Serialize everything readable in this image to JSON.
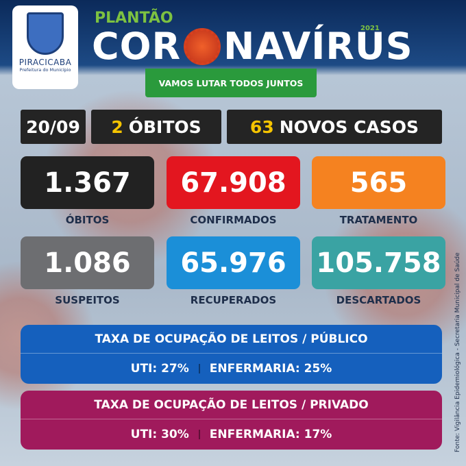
{
  "header": {
    "city": "PIRACICABA",
    "city_subtitle": "Prefeitura do Município",
    "kicker": "PLANTÃO",
    "title_left": "COR",
    "title_right": "NAVÍRUS",
    "year": "2021",
    "slogan": "VAMOS LUTAR TODOS JUNTOS"
  },
  "summary": {
    "date": "20/09",
    "deaths_count": "2",
    "deaths_label": "ÓBITOS",
    "new_cases_count": "63",
    "new_cases_label": "NOVOS CASOS"
  },
  "stats": [
    {
      "value": "1.367",
      "label": "ÓBITOS",
      "color": "#222222"
    },
    {
      "value": "67.908",
      "label": "CONFIRMADOS",
      "color": "#e3161f"
    },
    {
      "value": "565",
      "label": "TRATAMENTO",
      "color": "#f58220"
    },
    {
      "value": "1.086",
      "label": "SUSPEITOS",
      "color": "#6d6e71"
    },
    {
      "value": "65.976",
      "label": "RECUPERADOS",
      "color": "#1b8fd8"
    },
    {
      "value": "105.758",
      "label": "DESCARTADOS",
      "color": "#3aa3a3"
    }
  ],
  "occupancy": [
    {
      "title": "TAXA DE OCUPAÇÃO DE LEITOS / PÚBLICO",
      "uti": "UTI: 27%",
      "ward": "ENFERMARIA: 25%",
      "color": "#1560bd"
    },
    {
      "title": "TAXA DE OCUPAÇÃO DE LEITOS / PRIVADO",
      "uti": "UTI: 30%",
      "ward": "ENFERMARIA: 17%",
      "color": "#a01a5c"
    }
  ],
  "source": "Fonte: Vigilância Epidemiológica - Secretaria Municipal de Saúde"
}
